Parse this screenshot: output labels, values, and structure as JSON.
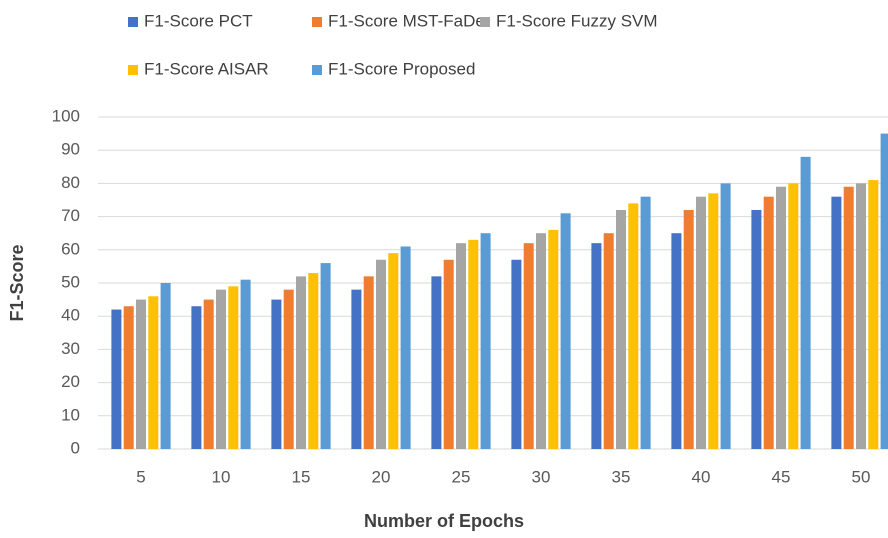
{
  "chart_data": {
    "type": "bar",
    "x_label": "Number of Epochs",
    "y_label": "F1-Score",
    "categories": [
      "5",
      "10",
      "15",
      "20",
      "25",
      "30",
      "35",
      "40",
      "45",
      "50"
    ],
    "series": [
      {
        "name": "F1-Score PCT",
        "color": "#4472c4",
        "values": [
          42,
          43,
          45,
          48,
          52,
          57,
          62,
          65,
          72,
          76
        ]
      },
      {
        "name": "F1-Score MST-FaDe",
        "color": "#ed7d31",
        "values": [
          43,
          45,
          48,
          52,
          57,
          62,
          65,
          72,
          76,
          79
        ]
      },
      {
        "name": "F1-Score Fuzzy SVM",
        "color": "#a5a5a5",
        "values": [
          45,
          48,
          52,
          57,
          62,
          65,
          72,
          76,
          79,
          80
        ]
      },
      {
        "name": "F1-Score AISAR",
        "color": "#ffc000",
        "values": [
          46,
          49,
          53,
          59,
          63,
          66,
          74,
          77,
          80,
          81
        ]
      },
      {
        "name": "F1-Score Proposed",
        "color": "#5b9bd5",
        "values": [
          50,
          51,
          56,
          61,
          65,
          71,
          76,
          80,
          88,
          95
        ]
      }
    ],
    "ylim": [
      0,
      100
    ],
    "yticks": [
      0,
      10,
      20,
      30,
      40,
      50,
      60,
      70,
      80,
      90,
      100
    ],
    "grid": true,
    "legend": "top"
  }
}
